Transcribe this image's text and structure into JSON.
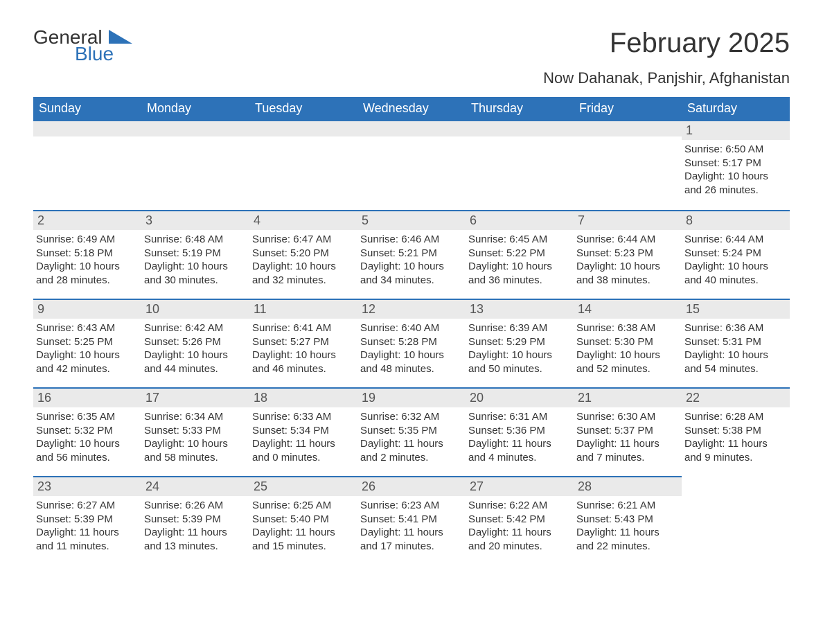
{
  "logo": {
    "part1": "General",
    "part2": "Blue",
    "color": "#2d72b8"
  },
  "title": "February 2025",
  "location": "Now Dahanak, Panjshir, Afghanistan",
  "theme": {
    "header_bg": "#2d72b8",
    "header_text": "#ffffff",
    "daybar_bg": "#eaeaea",
    "body_text": "#333333",
    "title_fontsize": 40,
    "subtitle_fontsize": 22,
    "th_fontsize": 18,
    "daynum_fontsize": 18,
    "body_fontsize": 15
  },
  "weekdays": [
    "Sunday",
    "Monday",
    "Tuesday",
    "Wednesday",
    "Thursday",
    "Friday",
    "Saturday"
  ],
  "month_start_weekday": 6,
  "days_in_month": 28,
  "days": {
    "1": {
      "sunrise": "6:50 AM",
      "sunset": "5:17 PM",
      "daylight": "10 hours and 26 minutes."
    },
    "2": {
      "sunrise": "6:49 AM",
      "sunset": "5:18 PM",
      "daylight": "10 hours and 28 minutes."
    },
    "3": {
      "sunrise": "6:48 AM",
      "sunset": "5:19 PM",
      "daylight": "10 hours and 30 minutes."
    },
    "4": {
      "sunrise": "6:47 AM",
      "sunset": "5:20 PM",
      "daylight": "10 hours and 32 minutes."
    },
    "5": {
      "sunrise": "6:46 AM",
      "sunset": "5:21 PM",
      "daylight": "10 hours and 34 minutes."
    },
    "6": {
      "sunrise": "6:45 AM",
      "sunset": "5:22 PM",
      "daylight": "10 hours and 36 minutes."
    },
    "7": {
      "sunrise": "6:44 AM",
      "sunset": "5:23 PM",
      "daylight": "10 hours and 38 minutes."
    },
    "8": {
      "sunrise": "6:44 AM",
      "sunset": "5:24 PM",
      "daylight": "10 hours and 40 minutes."
    },
    "9": {
      "sunrise": "6:43 AM",
      "sunset": "5:25 PM",
      "daylight": "10 hours and 42 minutes."
    },
    "10": {
      "sunrise": "6:42 AM",
      "sunset": "5:26 PM",
      "daylight": "10 hours and 44 minutes."
    },
    "11": {
      "sunrise": "6:41 AM",
      "sunset": "5:27 PM",
      "daylight": "10 hours and 46 minutes."
    },
    "12": {
      "sunrise": "6:40 AM",
      "sunset": "5:28 PM",
      "daylight": "10 hours and 48 minutes."
    },
    "13": {
      "sunrise": "6:39 AM",
      "sunset": "5:29 PM",
      "daylight": "10 hours and 50 minutes."
    },
    "14": {
      "sunrise": "6:38 AM",
      "sunset": "5:30 PM",
      "daylight": "10 hours and 52 minutes."
    },
    "15": {
      "sunrise": "6:36 AM",
      "sunset": "5:31 PM",
      "daylight": "10 hours and 54 minutes."
    },
    "16": {
      "sunrise": "6:35 AM",
      "sunset": "5:32 PM",
      "daylight": "10 hours and 56 minutes."
    },
    "17": {
      "sunrise": "6:34 AM",
      "sunset": "5:33 PM",
      "daylight": "10 hours and 58 minutes."
    },
    "18": {
      "sunrise": "6:33 AM",
      "sunset": "5:34 PM",
      "daylight": "11 hours and 0 minutes."
    },
    "19": {
      "sunrise": "6:32 AM",
      "sunset": "5:35 PM",
      "daylight": "11 hours and 2 minutes."
    },
    "20": {
      "sunrise": "6:31 AM",
      "sunset": "5:36 PM",
      "daylight": "11 hours and 4 minutes."
    },
    "21": {
      "sunrise": "6:30 AM",
      "sunset": "5:37 PM",
      "daylight": "11 hours and 7 minutes."
    },
    "22": {
      "sunrise": "6:28 AM",
      "sunset": "5:38 PM",
      "daylight": "11 hours and 9 minutes."
    },
    "23": {
      "sunrise": "6:27 AM",
      "sunset": "5:39 PM",
      "daylight": "11 hours and 11 minutes."
    },
    "24": {
      "sunrise": "6:26 AM",
      "sunset": "5:39 PM",
      "daylight": "11 hours and 13 minutes."
    },
    "25": {
      "sunrise": "6:25 AM",
      "sunset": "5:40 PM",
      "daylight": "11 hours and 15 minutes."
    },
    "26": {
      "sunrise": "6:23 AM",
      "sunset": "5:41 PM",
      "daylight": "11 hours and 17 minutes."
    },
    "27": {
      "sunrise": "6:22 AM",
      "sunset": "5:42 PM",
      "daylight": "11 hours and 20 minutes."
    },
    "28": {
      "sunrise": "6:21 AM",
      "sunset": "5:43 PM",
      "daylight": "11 hours and 22 minutes."
    }
  },
  "labels": {
    "sunrise": "Sunrise: ",
    "sunset": "Sunset: ",
    "daylight": "Daylight: "
  }
}
